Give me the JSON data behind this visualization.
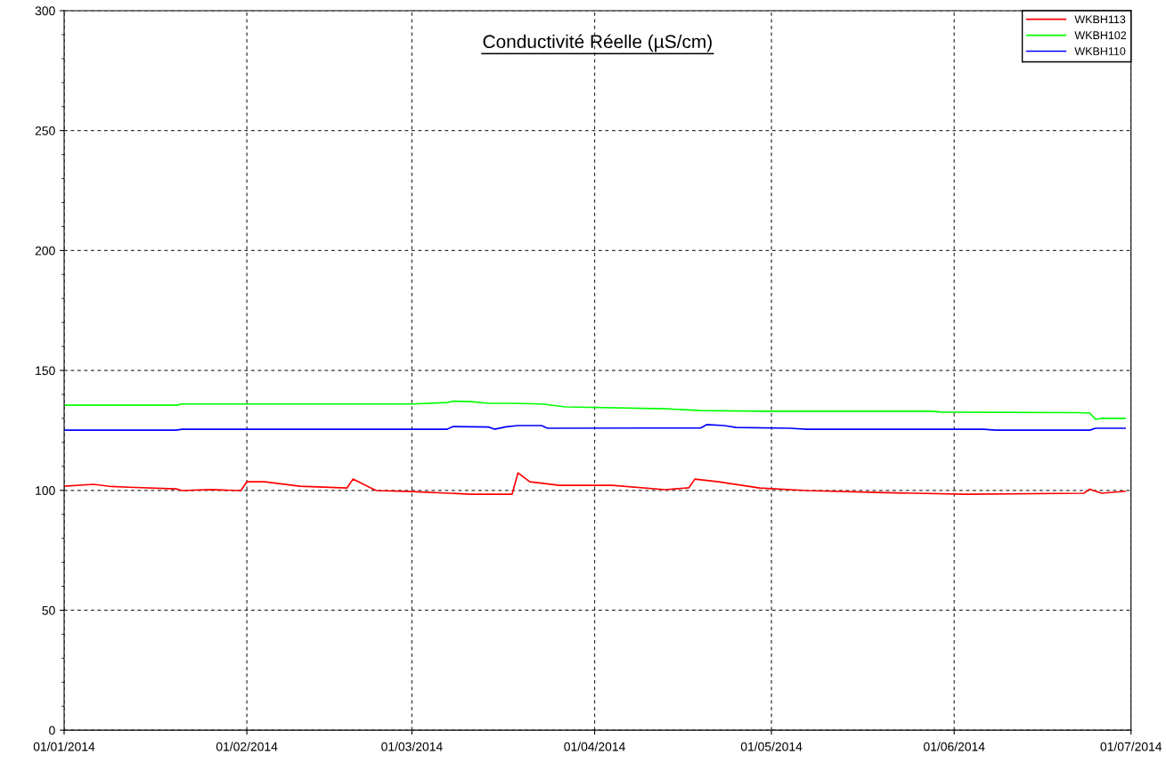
{
  "chart_data": {
    "type": "line",
    "title": "Conductivité Réelle (µS/cm)",
    "xlim": [
      "2014-01-01",
      "2014-07-01"
    ],
    "xticks": [
      {
        "value": "2014-01-01",
        "label": "01/01/2014"
      },
      {
        "value": "2014-02-01",
        "label": "01/02/2014"
      },
      {
        "value": "2014-03-01",
        "label": "01/03/2014"
      },
      {
        "value": "2014-04-01",
        "label": "01/04/2014"
      },
      {
        "value": "2014-05-01",
        "label": "01/05/2014"
      },
      {
        "value": "2014-06-01",
        "label": "01/06/2014"
      },
      {
        "value": "2014-07-01",
        "label": "01/07/2014"
      }
    ],
    "ylim": [
      0,
      300
    ],
    "yticks": [
      0,
      50,
      100,
      150,
      200,
      250,
      300
    ],
    "grid": true,
    "legend": "top right",
    "line_style": "solid",
    "series": [
      {
        "name": "WKBH113",
        "color": "#ff0000",
        "x": [
          "2014-01-01",
          "2014-01-06",
          "2014-01-09",
          "2014-01-12",
          "2014-01-20",
          "2014-01-21",
          "2014-01-26",
          "2014-01-31",
          "2014-02-01",
          "2014-02-04",
          "2014-02-10",
          "2014-02-18",
          "2014-02-19",
          "2014-02-22",
          "2014-02-23",
          "2014-03-01",
          "2014-03-11",
          "2014-03-18",
          "2014-03-19",
          "2014-03-21",
          "2014-03-26",
          "2014-04-04",
          "2014-04-13",
          "2014-04-17",
          "2014-04-18",
          "2014-04-22",
          "2014-04-29",
          "2014-05-07",
          "2014-05-19",
          "2014-06-03",
          "2014-06-23",
          "2014-06-24",
          "2014-06-26",
          "2014-06-30"
        ],
        "values": [
          101.7,
          102.5,
          101.6,
          101.3,
          100.6,
          99.9,
          100.3,
          99.9,
          103.6,
          103.6,
          101.7,
          101,
          104.7,
          101,
          99.9,
          99.5,
          98.4,
          98.4,
          107.3,
          103.6,
          102.1,
          102.1,
          100.3,
          101.1,
          104.7,
          103.6,
          101,
          99.9,
          99.1,
          98.4,
          98.8,
          100.5,
          98.8,
          99.6
        ]
      },
      {
        "name": "WKBH102",
        "color": "#00ff00",
        "x": [
          "2014-01-01",
          "2014-01-20",
          "2014-01-21",
          "2014-03-01",
          "2014-03-07",
          "2014-03-08",
          "2014-03-11",
          "2014-03-14",
          "2014-03-18",
          "2014-03-23",
          "2014-03-27",
          "2014-04-13",
          "2014-04-19",
          "2014-04-29",
          "2014-05-28",
          "2014-05-30",
          "2014-06-22",
          "2014-06-24",
          "2014-06-25",
          "2014-06-26",
          "2014-06-30"
        ],
        "values": [
          135.5,
          135.5,
          136,
          136,
          136.6,
          137.2,
          137,
          136.3,
          136.3,
          136,
          134.8,
          134,
          133.3,
          133,
          133,
          132.6,
          132.4,
          132.2,
          129.6,
          130,
          130
        ]
      },
      {
        "name": "WKBH110",
        "color": "#0000ff",
        "x": [
          "2014-01-01",
          "2014-01-20",
          "2014-01-21",
          "2014-03-07",
          "2014-03-08",
          "2014-03-14",
          "2014-03-15",
          "2014-03-17",
          "2014-03-19",
          "2014-03-23",
          "2014-03-24",
          "2014-04-11",
          "2014-04-19",
          "2014-04-20",
          "2014-04-23",
          "2014-04-25",
          "2014-05-04",
          "2014-05-07",
          "2014-06-06",
          "2014-06-08",
          "2014-06-24",
          "2014-06-25",
          "2014-06-30"
        ],
        "values": [
          125.1,
          125.1,
          125.5,
          125.5,
          126.6,
          126.4,
          125.5,
          126.5,
          127,
          127,
          125.9,
          126,
          126,
          127.4,
          127,
          126.2,
          125.9,
          125.5,
          125.5,
          125.1,
          125.1,
          125.9,
          125.9
        ]
      }
    ]
  }
}
